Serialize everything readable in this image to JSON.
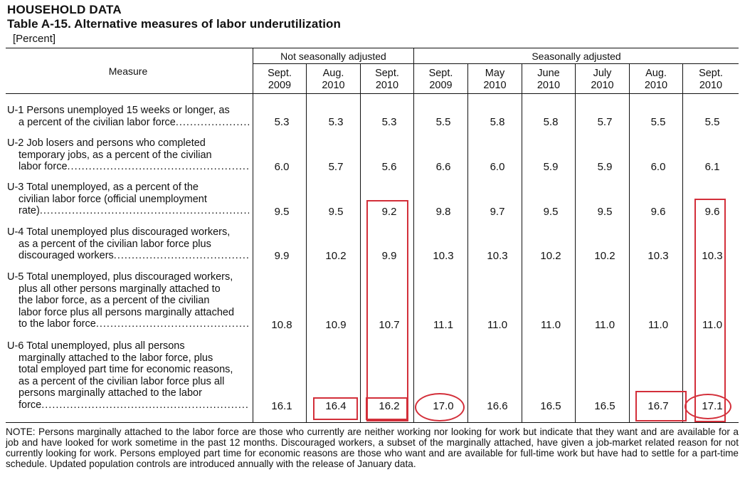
{
  "header": {
    "section": "HOUSEHOLD DATA",
    "table_title": "Table A-15. Alternative measures of labor underutilization",
    "unit": "[Percent]"
  },
  "groups": {
    "nsa": "Not seasonally adjusted",
    "sa": "Seasonally adjusted"
  },
  "measure_header": "Measure",
  "columns": [
    {
      "month": "Sept.",
      "year": "2009"
    },
    {
      "month": "Aug.",
      "year": "2010"
    },
    {
      "month": "Sept.",
      "year": "2010"
    },
    {
      "month": "Sept.",
      "year": "2009"
    },
    {
      "month": "May",
      "year": "2010"
    },
    {
      "month": "June",
      "year": "2010"
    },
    {
      "month": "July",
      "year": "2010"
    },
    {
      "month": "Aug.",
      "year": "2010"
    },
    {
      "month": "Sept.",
      "year": "2010"
    }
  ],
  "rows": [
    {
      "label_lines": [
        "U-1 Persons unemployed 15 weeks or longer, as",
        "a percent of the civilian labor force"
      ],
      "values": [
        "5.3",
        "5.3",
        "5.3",
        "5.5",
        "5.8",
        "5.8",
        "5.7",
        "5.5",
        "5.5"
      ]
    },
    {
      "label_lines": [
        "U-2 Job losers and persons who completed",
        "temporary jobs, as a percent of the civilian",
        "labor force"
      ],
      "values": [
        "6.0",
        "5.7",
        "5.6",
        "6.6",
        "6.0",
        "5.9",
        "5.9",
        "6.0",
        "6.1"
      ]
    },
    {
      "label_lines": [
        "U-3 Total unemployed, as a percent of the",
        "civilian labor force (official unemployment",
        "rate)"
      ],
      "values": [
        "9.5",
        "9.5",
        "9.2",
        "9.8",
        "9.7",
        "9.5",
        "9.5",
        "9.6",
        "9.6"
      ]
    },
    {
      "label_lines": [
        "U-4 Total unemployed plus discouraged workers,",
        "as a percent of the civilian labor force plus",
        "discouraged workers"
      ],
      "values": [
        "9.9",
        "10.2",
        "9.9",
        "10.3",
        "10.3",
        "10.2",
        "10.2",
        "10.3",
        "10.3"
      ]
    },
    {
      "label_lines": [
        "U-5 Total unemployed, plus discouraged workers,",
        "plus all other persons marginally attached to",
        "the labor force, as a percent of the civilian",
        "labor force plus all persons marginally attached",
        "to the labor force"
      ],
      "values": [
        "10.8",
        "10.9",
        "10.7",
        "11.1",
        "11.0",
        "11.0",
        "11.0",
        "11.0",
        "11.0"
      ]
    },
    {
      "label_lines": [
        "U-6 Total unemployed, plus all persons",
        "marginally attached to the labor force, plus",
        "total employed part time for economic reasons,",
        "as a percent of the civilian labor force plus all",
        "persons marginally attached to the labor",
        "force"
      ],
      "values": [
        "16.1",
        "16.4",
        "16.2",
        "17.0",
        "16.6",
        "16.5",
        "16.5",
        "16.7",
        "17.1"
      ]
    }
  ],
  "note": "NOTE: Persons marginally attached to the labor force are those who currently are neither working nor looking for work but indicate that they want and are available for a job and have looked for work sometime in the past 12 months. Discouraged workers, a subset of the marginally attached, have given a job-market related reason for not currently looking for work. Persons employed part time for economic reasons are those who want and are available for full-time work but have had to settle for a part-time schedule. Updated population controls are introduced annually with the release of January data.",
  "colors": {
    "text": "#111111",
    "annotation": "#d32f3a",
    "background": "#ffffff"
  }
}
